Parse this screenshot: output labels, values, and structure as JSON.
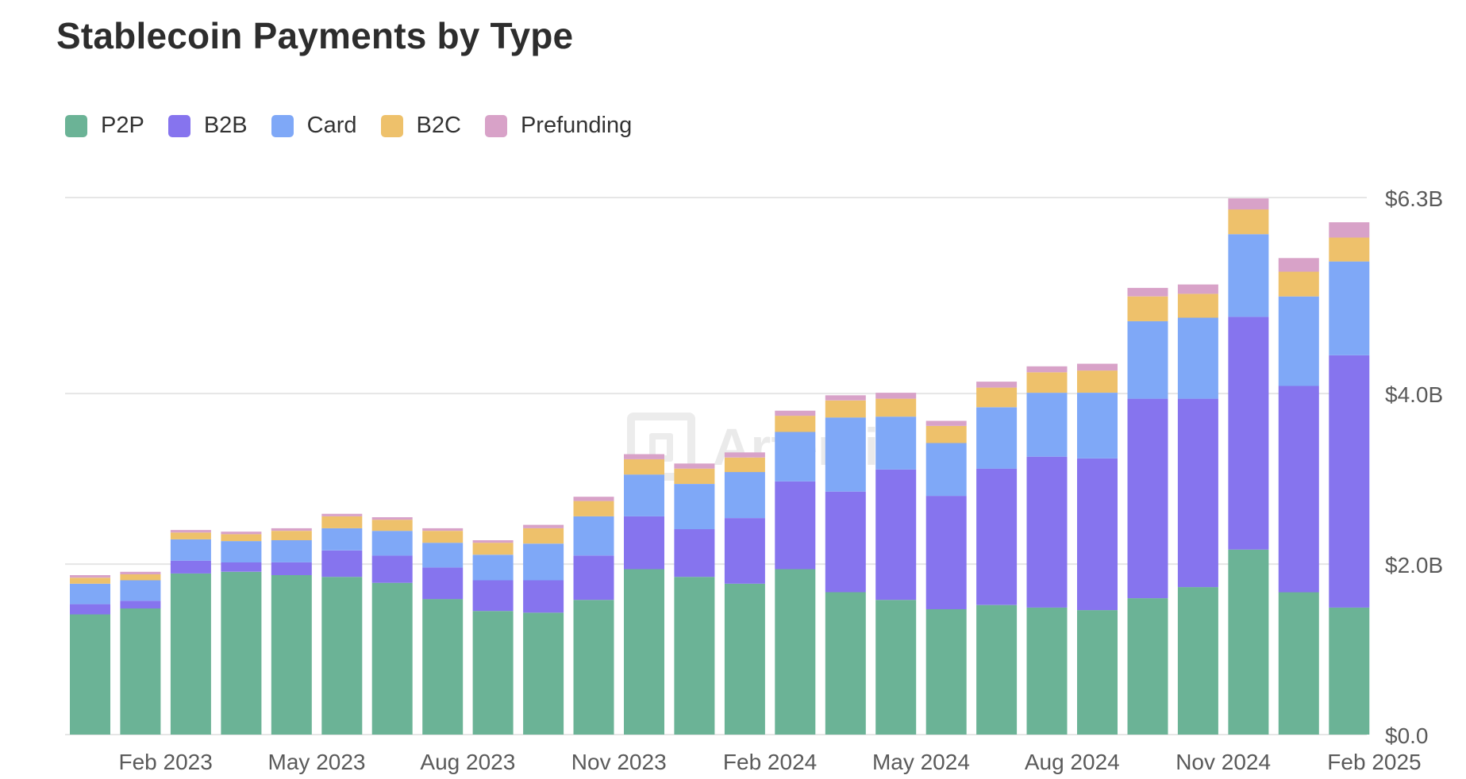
{
  "chart_data": {
    "type": "bar",
    "stacked": true,
    "title": "Stablecoin Payments by Type",
    "legend_position": "top-left",
    "grid": true,
    "y_axis_side": "right",
    "ylim": [
      0,
      6.3
    ],
    "y_ticks": [
      0,
      2.0,
      4.0,
      6.3
    ],
    "y_tick_labels": [
      "$0.0",
      "$2.0B",
      "$4.0B",
      "$6.3B"
    ],
    "x_tick_labels": [
      {
        "label": "Feb 2023",
        "index": 1
      },
      {
        "label": "May 2023",
        "index": 4
      },
      {
        "label": "Aug 2023",
        "index": 7
      },
      {
        "label": "Nov 2023",
        "index": 10
      },
      {
        "label": "Feb 2024",
        "index": 13
      },
      {
        "label": "May 2024",
        "index": 16
      },
      {
        "label": "Aug 2024",
        "index": 19
      },
      {
        "label": "Nov 2024",
        "index": 22
      },
      {
        "label": "Feb 2025",
        "index": 25
      }
    ],
    "categories": [
      "Jan 2023",
      "Feb 2023",
      "Mar 2023",
      "Apr 2023",
      "May 2023",
      "Jun 2023",
      "Jul 2023",
      "Aug 2023",
      "Sep 2023",
      "Oct 2023",
      "Nov 2023",
      "Dec 2023",
      "Jan 2024",
      "Feb 2024",
      "Mar 2024",
      "Apr 2024",
      "May 2024",
      "Jun 2024",
      "Jul 2024",
      "Aug 2024",
      "Sep 2024",
      "Oct 2024",
      "Nov 2024",
      "Dec 2024",
      "Jan 2025",
      "Feb 2025"
    ],
    "series": [
      {
        "name": "P2P",
        "color": "#6bb396",
        "values": [
          1.41,
          1.48,
          1.89,
          1.91,
          1.87,
          1.85,
          1.78,
          1.59,
          1.45,
          1.43,
          1.58,
          1.94,
          1.85,
          1.77,
          1.94,
          1.67,
          1.58,
          1.47,
          1.52,
          1.49,
          1.46,
          1.6,
          1.73,
          2.17,
          1.67,
          1.49
        ]
      },
      {
        "name": "B2B",
        "color": "#8674ee",
        "values": [
          0.12,
          0.09,
          0.15,
          0.11,
          0.15,
          0.31,
          0.32,
          0.37,
          0.36,
          0.38,
          0.52,
          0.62,
          0.56,
          0.77,
          1.03,
          1.18,
          1.53,
          1.33,
          1.6,
          1.77,
          1.78,
          2.34,
          2.21,
          2.73,
          2.42,
          2.96
        ]
      },
      {
        "name": "Card",
        "color": "#7fa8f7",
        "values": [
          0.24,
          0.24,
          0.25,
          0.25,
          0.26,
          0.26,
          0.29,
          0.29,
          0.3,
          0.43,
          0.46,
          0.49,
          0.53,
          0.54,
          0.58,
          0.87,
          0.62,
          0.62,
          0.72,
          0.75,
          0.77,
          0.91,
          0.95,
          0.97,
          1.05,
          1.1
        ]
      },
      {
        "name": "B2C",
        "color": "#eec16b",
        "values": [
          0.07,
          0.07,
          0.08,
          0.08,
          0.11,
          0.14,
          0.13,
          0.14,
          0.14,
          0.18,
          0.18,
          0.18,
          0.18,
          0.17,
          0.19,
          0.2,
          0.21,
          0.2,
          0.23,
          0.24,
          0.26,
          0.29,
          0.28,
          0.29,
          0.29,
          0.28
        ]
      },
      {
        "name": "Prefunding",
        "color": "#d8a2c8",
        "values": [
          0.03,
          0.03,
          0.03,
          0.03,
          0.03,
          0.03,
          0.03,
          0.03,
          0.03,
          0.04,
          0.05,
          0.06,
          0.06,
          0.06,
          0.06,
          0.06,
          0.07,
          0.06,
          0.07,
          0.07,
          0.08,
          0.1,
          0.11,
          0.13,
          0.16,
          0.18
        ]
      }
    ],
    "watermark": "Artemis"
  }
}
